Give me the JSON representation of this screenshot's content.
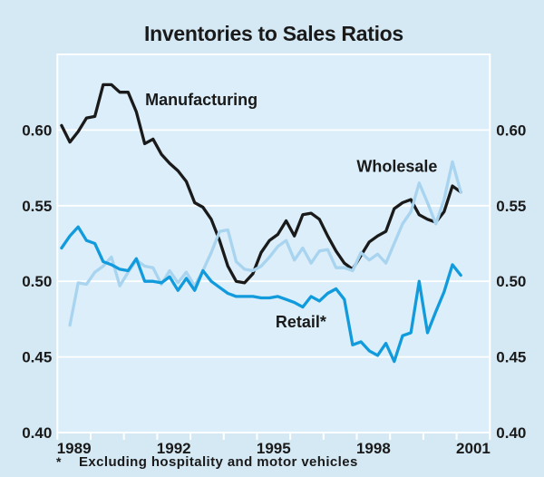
{
  "title": "Inventories to Sales Ratios",
  "footnote": {
    "marker": "*",
    "text": "Excluding hospitality and motor vehicles"
  },
  "colors": {
    "background": "#d5e9f5",
    "plot_background": "#dbeef9",
    "grid": "#ffffff",
    "text": "#1a1a1a",
    "manufacturing": "#1a1a1a",
    "wholesale": "#a9d4ef",
    "retail": "#119bdc"
  },
  "chart_data": {
    "type": "line",
    "title": "Inventories to Sales Ratios",
    "grid": true,
    "x_axis": {
      "range": [
        1989,
        2002
      ],
      "year_tick_step": 1,
      "labels": [
        {
          "label": "1989",
          "t": 1989.5
        },
        {
          "label": "1992",
          "t": 1992.5
        },
        {
          "label": "1995",
          "t": 1995.5
        },
        {
          "label": "1998",
          "t": 1998.5
        },
        {
          "label": "2001",
          "t": 2001.5
        }
      ]
    },
    "y_axis": {
      "range": [
        0.4,
        0.65
      ],
      "sides": "both",
      "ticks": [
        {
          "label": "0.60",
          "value": 0.6
        },
        {
          "label": "0.55",
          "value": 0.55
        },
        {
          "label": "0.50",
          "value": 0.5
        },
        {
          "label": "0.45",
          "value": 0.45
        },
        {
          "label": "0.40",
          "value": 0.4
        }
      ]
    },
    "series": [
      {
        "name": "Manufacturing",
        "color_key": "manufacturing",
        "start": 1989.125,
        "step": 0.25,
        "values": [
          0.603,
          0.592,
          0.599,
          0.608,
          0.609,
          0.63,
          0.63,
          0.625,
          0.625,
          0.612,
          0.591,
          0.594,
          0.584,
          0.578,
          0.573,
          0.566,
          0.552,
          0.549,
          0.541,
          0.527,
          0.51,
          0.5,
          0.499,
          0.505,
          0.519,
          0.527,
          0.531,
          0.54,
          0.53,
          0.544,
          0.545,
          0.541,
          0.53,
          0.52,
          0.512,
          0.508,
          0.517,
          0.526,
          0.53,
          0.533,
          0.548,
          0.552,
          0.554,
          0.544,
          0.541,
          0.539,
          0.546,
          0.563,
          0.559
        ]
      },
      {
        "name": "Wholesale",
        "color_key": "wholesale",
        "start": 1989.375,
        "step": 0.25,
        "values": [
          0.471,
          0.499,
          0.498,
          0.506,
          0.51,
          0.516,
          0.497,
          0.506,
          0.514,
          0.51,
          0.509,
          0.498,
          0.507,
          0.499,
          0.506,
          0.497,
          0.507,
          0.519,
          0.533,
          0.534,
          0.513,
          0.508,
          0.507,
          0.51,
          0.516,
          0.523,
          0.527,
          0.514,
          0.522,
          0.512,
          0.52,
          0.521,
          0.509,
          0.509,
          0.507,
          0.519,
          0.514,
          0.518,
          0.512,
          0.525,
          0.538,
          0.546,
          0.565,
          0.552,
          0.538,
          0.554,
          0.579,
          0.559
        ]
      },
      {
        "name": "Retail*",
        "color_key": "retail",
        "start": 1989.125,
        "step": 0.25,
        "values": [
          0.522,
          0.53,
          0.536,
          0.527,
          0.525,
          0.513,
          0.511,
          0.508,
          0.507,
          0.515,
          0.5,
          0.5,
          0.499,
          0.503,
          0.494,
          0.502,
          0.494,
          0.507,
          0.5,
          0.496,
          0.492,
          0.49,
          0.49,
          0.49,
          0.489,
          0.489,
          0.49,
          0.488,
          0.486,
          0.483,
          0.49,
          0.487,
          0.492,
          0.495,
          0.488,
          0.458,
          0.46,
          0.454,
          0.451,
          0.459,
          0.447,
          0.464,
          0.466,
          0.5,
          0.466,
          0.48,
          0.493,
          0.511,
          0.504
        ]
      }
    ],
    "annotations": [
      {
        "text": "Manufacturing",
        "t": 1993.33,
        "v": 0.62,
        "series": "manufacturing"
      },
      {
        "text": "Wholesale",
        "t": 1999.21,
        "v": 0.576,
        "series": "wholesale"
      },
      {
        "text": "Retail*",
        "t": 1996.32,
        "v": 0.473,
        "series": "retail"
      }
    ]
  }
}
